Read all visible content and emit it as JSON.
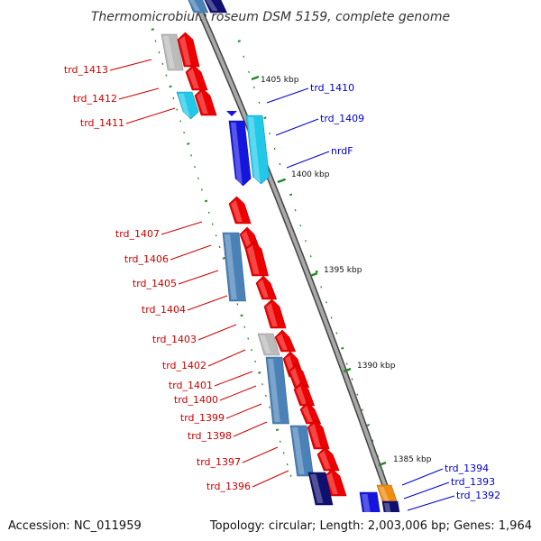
{
  "title": "Thermomicrobium roseum DSM 5159, complete genome",
  "footer": {
    "accession": "Accession: NC_011959",
    "summary": "Topology: circular; Length: 2,003,006 bp; Genes: 1,964"
  },
  "scale_labels": [
    "1405 kbp",
    "1400 kbp",
    "1395 kbp",
    "1390 kbp",
    "1385 kbp"
  ],
  "gene_labels_left": [
    "trd_1413",
    "trd_1412",
    "trd_1411",
    "trd_1407",
    "trd_1406",
    "trd_1405",
    "trd_1404",
    "trd_1403",
    "trd_1402",
    "trd_1401",
    "trd_1400",
    "trd_1399",
    "trd_1398",
    "trd_1397",
    "trd_1396"
  ],
  "gene_labels_right": [
    "trd_1410",
    "trd_1409",
    "nrdF",
    "trd_1394",
    "trd_1393",
    "trd_1392"
  ],
  "colors": {
    "forward_gene": "#ee0000",
    "reverse_gene": "#1515dd",
    "cyan_gene": "#22c8e8",
    "steel_gene": "#4a82b8",
    "navy_gene": "#101070",
    "grey_gene": "#bbbbbb",
    "orange_gene": "#f08c10",
    "backbone": "#888888",
    "gc_marks": "#228822",
    "label_left": "#cc0000",
    "label_right": "#0000cc"
  }
}
